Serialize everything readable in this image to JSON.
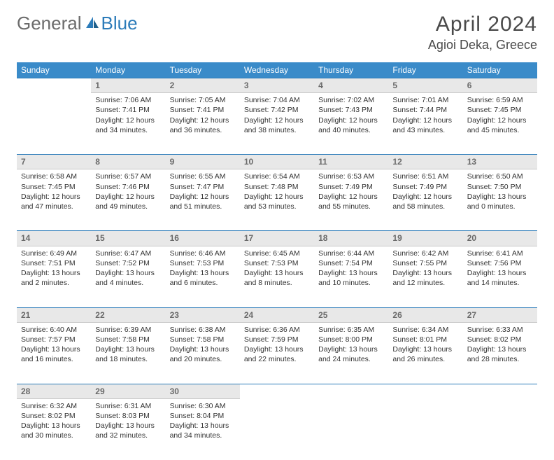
{
  "brand": {
    "general": "General",
    "blue": "Blue"
  },
  "title": "April 2024",
  "location": "Agioi Deka, Greece",
  "colors": {
    "header_bg": "#3a8bc9",
    "header_text": "#ffffff",
    "daynum_bg": "#e8e8e8",
    "daynum_border_top": "#2b7bb9",
    "text": "#333333"
  },
  "day_headers": [
    "Sunday",
    "Monday",
    "Tuesday",
    "Wednesday",
    "Thursday",
    "Friday",
    "Saturday"
  ],
  "weeks": [
    [
      null,
      {
        "n": "1",
        "sr": "Sunrise: 7:06 AM",
        "ss": "Sunset: 7:41 PM",
        "d1": "Daylight: 12 hours",
        "d2": "and 34 minutes."
      },
      {
        "n": "2",
        "sr": "Sunrise: 7:05 AM",
        "ss": "Sunset: 7:41 PM",
        "d1": "Daylight: 12 hours",
        "d2": "and 36 minutes."
      },
      {
        "n": "3",
        "sr": "Sunrise: 7:04 AM",
        "ss": "Sunset: 7:42 PM",
        "d1": "Daylight: 12 hours",
        "d2": "and 38 minutes."
      },
      {
        "n": "4",
        "sr": "Sunrise: 7:02 AM",
        "ss": "Sunset: 7:43 PM",
        "d1": "Daylight: 12 hours",
        "d2": "and 40 minutes."
      },
      {
        "n": "5",
        "sr": "Sunrise: 7:01 AM",
        "ss": "Sunset: 7:44 PM",
        "d1": "Daylight: 12 hours",
        "d2": "and 43 minutes."
      },
      {
        "n": "6",
        "sr": "Sunrise: 6:59 AM",
        "ss": "Sunset: 7:45 PM",
        "d1": "Daylight: 12 hours",
        "d2": "and 45 minutes."
      }
    ],
    [
      {
        "n": "7",
        "sr": "Sunrise: 6:58 AM",
        "ss": "Sunset: 7:45 PM",
        "d1": "Daylight: 12 hours",
        "d2": "and 47 minutes."
      },
      {
        "n": "8",
        "sr": "Sunrise: 6:57 AM",
        "ss": "Sunset: 7:46 PM",
        "d1": "Daylight: 12 hours",
        "d2": "and 49 minutes."
      },
      {
        "n": "9",
        "sr": "Sunrise: 6:55 AM",
        "ss": "Sunset: 7:47 PM",
        "d1": "Daylight: 12 hours",
        "d2": "and 51 minutes."
      },
      {
        "n": "10",
        "sr": "Sunrise: 6:54 AM",
        "ss": "Sunset: 7:48 PM",
        "d1": "Daylight: 12 hours",
        "d2": "and 53 minutes."
      },
      {
        "n": "11",
        "sr": "Sunrise: 6:53 AM",
        "ss": "Sunset: 7:49 PM",
        "d1": "Daylight: 12 hours",
        "d2": "and 55 minutes."
      },
      {
        "n": "12",
        "sr": "Sunrise: 6:51 AM",
        "ss": "Sunset: 7:49 PM",
        "d1": "Daylight: 12 hours",
        "d2": "and 58 minutes."
      },
      {
        "n": "13",
        "sr": "Sunrise: 6:50 AM",
        "ss": "Sunset: 7:50 PM",
        "d1": "Daylight: 13 hours",
        "d2": "and 0 minutes."
      }
    ],
    [
      {
        "n": "14",
        "sr": "Sunrise: 6:49 AM",
        "ss": "Sunset: 7:51 PM",
        "d1": "Daylight: 13 hours",
        "d2": "and 2 minutes."
      },
      {
        "n": "15",
        "sr": "Sunrise: 6:47 AM",
        "ss": "Sunset: 7:52 PM",
        "d1": "Daylight: 13 hours",
        "d2": "and 4 minutes."
      },
      {
        "n": "16",
        "sr": "Sunrise: 6:46 AM",
        "ss": "Sunset: 7:53 PM",
        "d1": "Daylight: 13 hours",
        "d2": "and 6 minutes."
      },
      {
        "n": "17",
        "sr": "Sunrise: 6:45 AM",
        "ss": "Sunset: 7:53 PM",
        "d1": "Daylight: 13 hours",
        "d2": "and 8 minutes."
      },
      {
        "n": "18",
        "sr": "Sunrise: 6:44 AM",
        "ss": "Sunset: 7:54 PM",
        "d1": "Daylight: 13 hours",
        "d2": "and 10 minutes."
      },
      {
        "n": "19",
        "sr": "Sunrise: 6:42 AM",
        "ss": "Sunset: 7:55 PM",
        "d1": "Daylight: 13 hours",
        "d2": "and 12 minutes."
      },
      {
        "n": "20",
        "sr": "Sunrise: 6:41 AM",
        "ss": "Sunset: 7:56 PM",
        "d1": "Daylight: 13 hours",
        "d2": "and 14 minutes."
      }
    ],
    [
      {
        "n": "21",
        "sr": "Sunrise: 6:40 AM",
        "ss": "Sunset: 7:57 PM",
        "d1": "Daylight: 13 hours",
        "d2": "and 16 minutes."
      },
      {
        "n": "22",
        "sr": "Sunrise: 6:39 AM",
        "ss": "Sunset: 7:58 PM",
        "d1": "Daylight: 13 hours",
        "d2": "and 18 minutes."
      },
      {
        "n": "23",
        "sr": "Sunrise: 6:38 AM",
        "ss": "Sunset: 7:58 PM",
        "d1": "Daylight: 13 hours",
        "d2": "and 20 minutes."
      },
      {
        "n": "24",
        "sr": "Sunrise: 6:36 AM",
        "ss": "Sunset: 7:59 PM",
        "d1": "Daylight: 13 hours",
        "d2": "and 22 minutes."
      },
      {
        "n": "25",
        "sr": "Sunrise: 6:35 AM",
        "ss": "Sunset: 8:00 PM",
        "d1": "Daylight: 13 hours",
        "d2": "and 24 minutes."
      },
      {
        "n": "26",
        "sr": "Sunrise: 6:34 AM",
        "ss": "Sunset: 8:01 PM",
        "d1": "Daylight: 13 hours",
        "d2": "and 26 minutes."
      },
      {
        "n": "27",
        "sr": "Sunrise: 6:33 AM",
        "ss": "Sunset: 8:02 PM",
        "d1": "Daylight: 13 hours",
        "d2": "and 28 minutes."
      }
    ],
    [
      {
        "n": "28",
        "sr": "Sunrise: 6:32 AM",
        "ss": "Sunset: 8:02 PM",
        "d1": "Daylight: 13 hours",
        "d2": "and 30 minutes."
      },
      {
        "n": "29",
        "sr": "Sunrise: 6:31 AM",
        "ss": "Sunset: 8:03 PM",
        "d1": "Daylight: 13 hours",
        "d2": "and 32 minutes."
      },
      {
        "n": "30",
        "sr": "Sunrise: 6:30 AM",
        "ss": "Sunset: 8:04 PM",
        "d1": "Daylight: 13 hours",
        "d2": "and 34 minutes."
      },
      null,
      null,
      null,
      null
    ]
  ]
}
